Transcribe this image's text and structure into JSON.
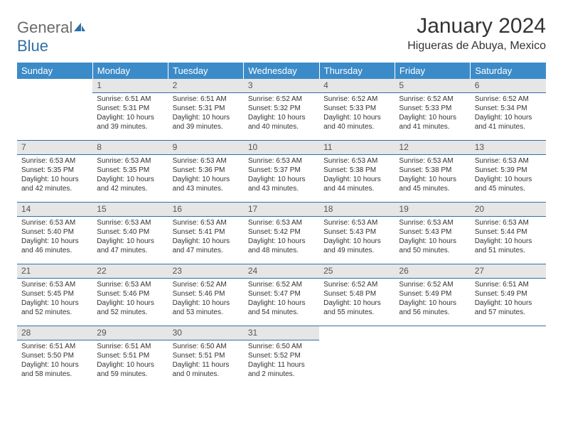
{
  "logo": {
    "text1": "General",
    "text2": "Blue"
  },
  "title": "January 2024",
  "location": "Higueras de Abuya, Mexico",
  "colors": {
    "header_bg": "#3b8bc8",
    "header_text": "#ffffff",
    "daynum_bg": "#e6e6e6",
    "row_border": "#2f6fa7",
    "body_text": "#333333",
    "logo_gray": "#6a6a6a",
    "logo_blue": "#2f6fa7"
  },
  "fonts": {
    "title_size": 30,
    "location_size": 16,
    "header_size": 13,
    "daynum_size": 12,
    "body_size": 10
  },
  "daysOfWeek": [
    "Sunday",
    "Monday",
    "Tuesday",
    "Wednesday",
    "Thursday",
    "Friday",
    "Saturday"
  ],
  "weeks": [
    [
      {
        "num": "",
        "lines": [
          "",
          "",
          "",
          ""
        ]
      },
      {
        "num": "1",
        "lines": [
          "Sunrise: 6:51 AM",
          "Sunset: 5:31 PM",
          "Daylight: 10 hours",
          "and 39 minutes."
        ]
      },
      {
        "num": "2",
        "lines": [
          "Sunrise: 6:51 AM",
          "Sunset: 5:31 PM",
          "Daylight: 10 hours",
          "and 39 minutes."
        ]
      },
      {
        "num": "3",
        "lines": [
          "Sunrise: 6:52 AM",
          "Sunset: 5:32 PM",
          "Daylight: 10 hours",
          "and 40 minutes."
        ]
      },
      {
        "num": "4",
        "lines": [
          "Sunrise: 6:52 AM",
          "Sunset: 5:33 PM",
          "Daylight: 10 hours",
          "and 40 minutes."
        ]
      },
      {
        "num": "5",
        "lines": [
          "Sunrise: 6:52 AM",
          "Sunset: 5:33 PM",
          "Daylight: 10 hours",
          "and 41 minutes."
        ]
      },
      {
        "num": "6",
        "lines": [
          "Sunrise: 6:52 AM",
          "Sunset: 5:34 PM",
          "Daylight: 10 hours",
          "and 41 minutes."
        ]
      }
    ],
    [
      {
        "num": "7",
        "lines": [
          "Sunrise: 6:53 AM",
          "Sunset: 5:35 PM",
          "Daylight: 10 hours",
          "and 42 minutes."
        ]
      },
      {
        "num": "8",
        "lines": [
          "Sunrise: 6:53 AM",
          "Sunset: 5:35 PM",
          "Daylight: 10 hours",
          "and 42 minutes."
        ]
      },
      {
        "num": "9",
        "lines": [
          "Sunrise: 6:53 AM",
          "Sunset: 5:36 PM",
          "Daylight: 10 hours",
          "and 43 minutes."
        ]
      },
      {
        "num": "10",
        "lines": [
          "Sunrise: 6:53 AM",
          "Sunset: 5:37 PM",
          "Daylight: 10 hours",
          "and 43 minutes."
        ]
      },
      {
        "num": "11",
        "lines": [
          "Sunrise: 6:53 AM",
          "Sunset: 5:38 PM",
          "Daylight: 10 hours",
          "and 44 minutes."
        ]
      },
      {
        "num": "12",
        "lines": [
          "Sunrise: 6:53 AM",
          "Sunset: 5:38 PM",
          "Daylight: 10 hours",
          "and 45 minutes."
        ]
      },
      {
        "num": "13",
        "lines": [
          "Sunrise: 6:53 AM",
          "Sunset: 5:39 PM",
          "Daylight: 10 hours",
          "and 45 minutes."
        ]
      }
    ],
    [
      {
        "num": "14",
        "lines": [
          "Sunrise: 6:53 AM",
          "Sunset: 5:40 PM",
          "Daylight: 10 hours",
          "and 46 minutes."
        ]
      },
      {
        "num": "15",
        "lines": [
          "Sunrise: 6:53 AM",
          "Sunset: 5:40 PM",
          "Daylight: 10 hours",
          "and 47 minutes."
        ]
      },
      {
        "num": "16",
        "lines": [
          "Sunrise: 6:53 AM",
          "Sunset: 5:41 PM",
          "Daylight: 10 hours",
          "and 47 minutes."
        ]
      },
      {
        "num": "17",
        "lines": [
          "Sunrise: 6:53 AM",
          "Sunset: 5:42 PM",
          "Daylight: 10 hours",
          "and 48 minutes."
        ]
      },
      {
        "num": "18",
        "lines": [
          "Sunrise: 6:53 AM",
          "Sunset: 5:43 PM",
          "Daylight: 10 hours",
          "and 49 minutes."
        ]
      },
      {
        "num": "19",
        "lines": [
          "Sunrise: 6:53 AM",
          "Sunset: 5:43 PM",
          "Daylight: 10 hours",
          "and 50 minutes."
        ]
      },
      {
        "num": "20",
        "lines": [
          "Sunrise: 6:53 AM",
          "Sunset: 5:44 PM",
          "Daylight: 10 hours",
          "and 51 minutes."
        ]
      }
    ],
    [
      {
        "num": "21",
        "lines": [
          "Sunrise: 6:53 AM",
          "Sunset: 5:45 PM",
          "Daylight: 10 hours",
          "and 52 minutes."
        ]
      },
      {
        "num": "22",
        "lines": [
          "Sunrise: 6:53 AM",
          "Sunset: 5:46 PM",
          "Daylight: 10 hours",
          "and 52 minutes."
        ]
      },
      {
        "num": "23",
        "lines": [
          "Sunrise: 6:52 AM",
          "Sunset: 5:46 PM",
          "Daylight: 10 hours",
          "and 53 minutes."
        ]
      },
      {
        "num": "24",
        "lines": [
          "Sunrise: 6:52 AM",
          "Sunset: 5:47 PM",
          "Daylight: 10 hours",
          "and 54 minutes."
        ]
      },
      {
        "num": "25",
        "lines": [
          "Sunrise: 6:52 AM",
          "Sunset: 5:48 PM",
          "Daylight: 10 hours",
          "and 55 minutes."
        ]
      },
      {
        "num": "26",
        "lines": [
          "Sunrise: 6:52 AM",
          "Sunset: 5:49 PM",
          "Daylight: 10 hours",
          "and 56 minutes."
        ]
      },
      {
        "num": "27",
        "lines": [
          "Sunrise: 6:51 AM",
          "Sunset: 5:49 PM",
          "Daylight: 10 hours",
          "and 57 minutes."
        ]
      }
    ],
    [
      {
        "num": "28",
        "lines": [
          "Sunrise: 6:51 AM",
          "Sunset: 5:50 PM",
          "Daylight: 10 hours",
          "and 58 minutes."
        ]
      },
      {
        "num": "29",
        "lines": [
          "Sunrise: 6:51 AM",
          "Sunset: 5:51 PM",
          "Daylight: 10 hours",
          "and 59 minutes."
        ]
      },
      {
        "num": "30",
        "lines": [
          "Sunrise: 6:50 AM",
          "Sunset: 5:51 PM",
          "Daylight: 11 hours",
          "and 0 minutes."
        ]
      },
      {
        "num": "31",
        "lines": [
          "Sunrise: 6:50 AM",
          "Sunset: 5:52 PM",
          "Daylight: 11 hours",
          "and 2 minutes."
        ]
      },
      {
        "num": "",
        "lines": [
          "",
          "",
          "",
          ""
        ]
      },
      {
        "num": "",
        "lines": [
          "",
          "",
          "",
          ""
        ]
      },
      {
        "num": "",
        "lines": [
          "",
          "",
          "",
          ""
        ]
      }
    ]
  ]
}
